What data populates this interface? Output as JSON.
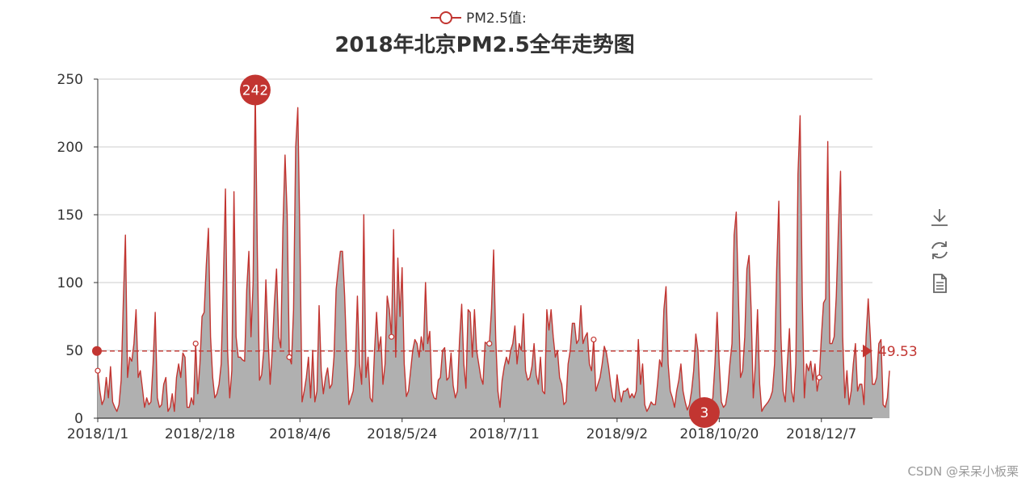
{
  "chart_data": {
    "type": "area",
    "title": "2018年北京PM2.5全年走势图",
    "legend": "PM2.5值:",
    "legend_position": "top-center",
    "series": [
      {
        "name": "PM2.5值:",
        "color": "#c23531",
        "area_color": "#b0b0b0"
      }
    ],
    "x_tick_labels": [
      "2018/1/1",
      "2018/2/18",
      "2018/4/6",
      "2018/5/24",
      "2018/7/11",
      "2018/9/2",
      "2018/10/20",
      "2018/12/7"
    ],
    "x_tick_day_index": [
      0,
      48,
      95,
      143,
      191,
      244,
      292,
      340
    ],
    "days": 365,
    "ylim": [
      0,
      250
    ],
    "y_ticks": [
      0,
      50,
      100,
      150,
      200,
      250
    ],
    "grid": true,
    "values": [
      35,
      20,
      10,
      14,
      30,
      15,
      38,
      12,
      8,
      5,
      10,
      28,
      85,
      135,
      30,
      45,
      42,
      55,
      80,
      30,
      35,
      22,
      8,
      15,
      10,
      12,
      40,
      78,
      15,
      8,
      10,
      25,
      30,
      5,
      8,
      18,
      5,
      30,
      40,
      30,
      48,
      45,
      8,
      8,
      15,
      10,
      55,
      18,
      40,
      75,
      78,
      113,
      140,
      60,
      30,
      15,
      18,
      25,
      40,
      100,
      169,
      50,
      15,
      35,
      167,
      60,
      45,
      45,
      43,
      42,
      95,
      123,
      60,
      100,
      242,
      120,
      28,
      32,
      50,
      102,
      60,
      25,
      50,
      85,
      110,
      60,
      52,
      140,
      194,
      150,
      45,
      40,
      80,
      200,
      229,
      130,
      12,
      20,
      30,
      45,
      15,
      50,
      12,
      20,
      83,
      35,
      18,
      30,
      37,
      22,
      25,
      45,
      95,
      110,
      123,
      123,
      90,
      45,
      10,
      15,
      20,
      40,
      90,
      40,
      25,
      150,
      30,
      45,
      15,
      12,
      48,
      78,
      50,
      60,
      25,
      40,
      90,
      80,
      60,
      139,
      45,
      118,
      75,
      111,
      40,
      16,
      20,
      35,
      50,
      58,
      55,
      45,
      60,
      50,
      100,
      55,
      64,
      20,
      15,
      14,
      28,
      30,
      50,
      52,
      28,
      30,
      48,
      24,
      15,
      20,
      58,
      84,
      40,
      22,
      80,
      78,
      45,
      80,
      50,
      40,
      30,
      25,
      56,
      55,
      55,
      80,
      124,
      58,
      20,
      8,
      28,
      38,
      45,
      40,
      50,
      55,
      68,
      40,
      55,
      50,
      77,
      35,
      28,
      30,
      38,
      55,
      32,
      25,
      45,
      20,
      18,
      80,
      65,
      80,
      60,
      45,
      50,
      30,
      25,
      10,
      12,
      40,
      50,
      70,
      70,
      55,
      58,
      83,
      55,
      60,
      63,
      40,
      35,
      58,
      20,
      25,
      30,
      40,
      53,
      48,
      38,
      25,
      15,
      12,
      32,
      20,
      12,
      20,
      20,
      22,
      15,
      18,
      15,
      20,
      58,
      25,
      40,
      10,
      5,
      8,
      12,
      10,
      10,
      25,
      43,
      38,
      80,
      97,
      40,
      20,
      15,
      8,
      20,
      28,
      40,
      20,
      12,
      6,
      10,
      20,
      35,
      62,
      50,
      15,
      5,
      3,
      8,
      12,
      10,
      15,
      40,
      78,
      40,
      12,
      8,
      10,
      20,
      40,
      55,
      135,
      152,
      90,
      30,
      35,
      60,
      110,
      120,
      80,
      15,
      40,
      80,
      25,
      5,
      8,
      10,
      12,
      15,
      20,
      40,
      110,
      160,
      60,
      20,
      12,
      40,
      66,
      20,
      12,
      40,
      180,
      223,
      90,
      15,
      40,
      35,
      42,
      28,
      40,
      20,
      30,
      60,
      85,
      88,
      204,
      55,
      55,
      60,
      90,
      140,
      182,
      60,
      15,
      35,
      10,
      20,
      40,
      55,
      20,
      25,
      25,
      10,
      60,
      88,
      60,
      25,
      25,
      30,
      55,
      58,
      10,
      8,
      15,
      35
    ]
  },
  "mark_points": [
    {
      "label": "242",
      "value": 242
    },
    {
      "label": "3",
      "value": 3
    }
  ],
  "mark_line": {
    "label": "49.53",
    "value": 49.53
  },
  "toolbox": {
    "icons": [
      "download-icon",
      "refresh-icon",
      "data-view-icon"
    ]
  },
  "watermark": "CSDN @呆呆小板栗"
}
